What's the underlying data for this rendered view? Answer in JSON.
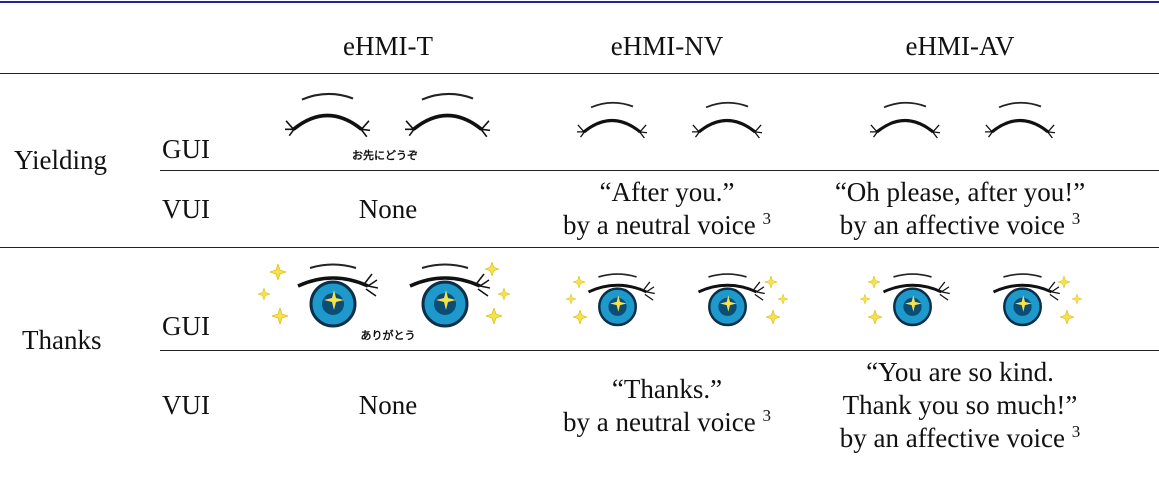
{
  "table": {
    "header": [
      "eHMI-T",
      "eHMI-NV",
      "eHMI-AV"
    ],
    "groups": [
      {
        "label": "Yielding",
        "gui_label": "GUI",
        "gui_caption": "お先にどうぞ",
        "vui_label": "VUI",
        "vui": [
          {
            "lines": [
              "None"
            ]
          },
          {
            "lines": [
              "“After you.”",
              "by a neutral voice"
            ],
            "footnote": "3"
          },
          {
            "lines": [
              "“Oh please, after you!”",
              "by an affective voice"
            ],
            "footnote": "3"
          }
        ]
      },
      {
        "label": "Thanks",
        "gui_label": "GUI",
        "gui_caption": "ありがとう",
        "vui_label": "VUI",
        "vui": [
          {
            "lines": [
              "None"
            ]
          },
          {
            "lines": [
              "“Thanks.”",
              "by a neutral voice"
            ],
            "footnote": "3"
          },
          {
            "lines": [
              "“You are so kind.",
              "Thank you so much!”",
              "by an affective voice"
            ],
            "footnote": "3"
          }
        ]
      }
    ]
  }
}
